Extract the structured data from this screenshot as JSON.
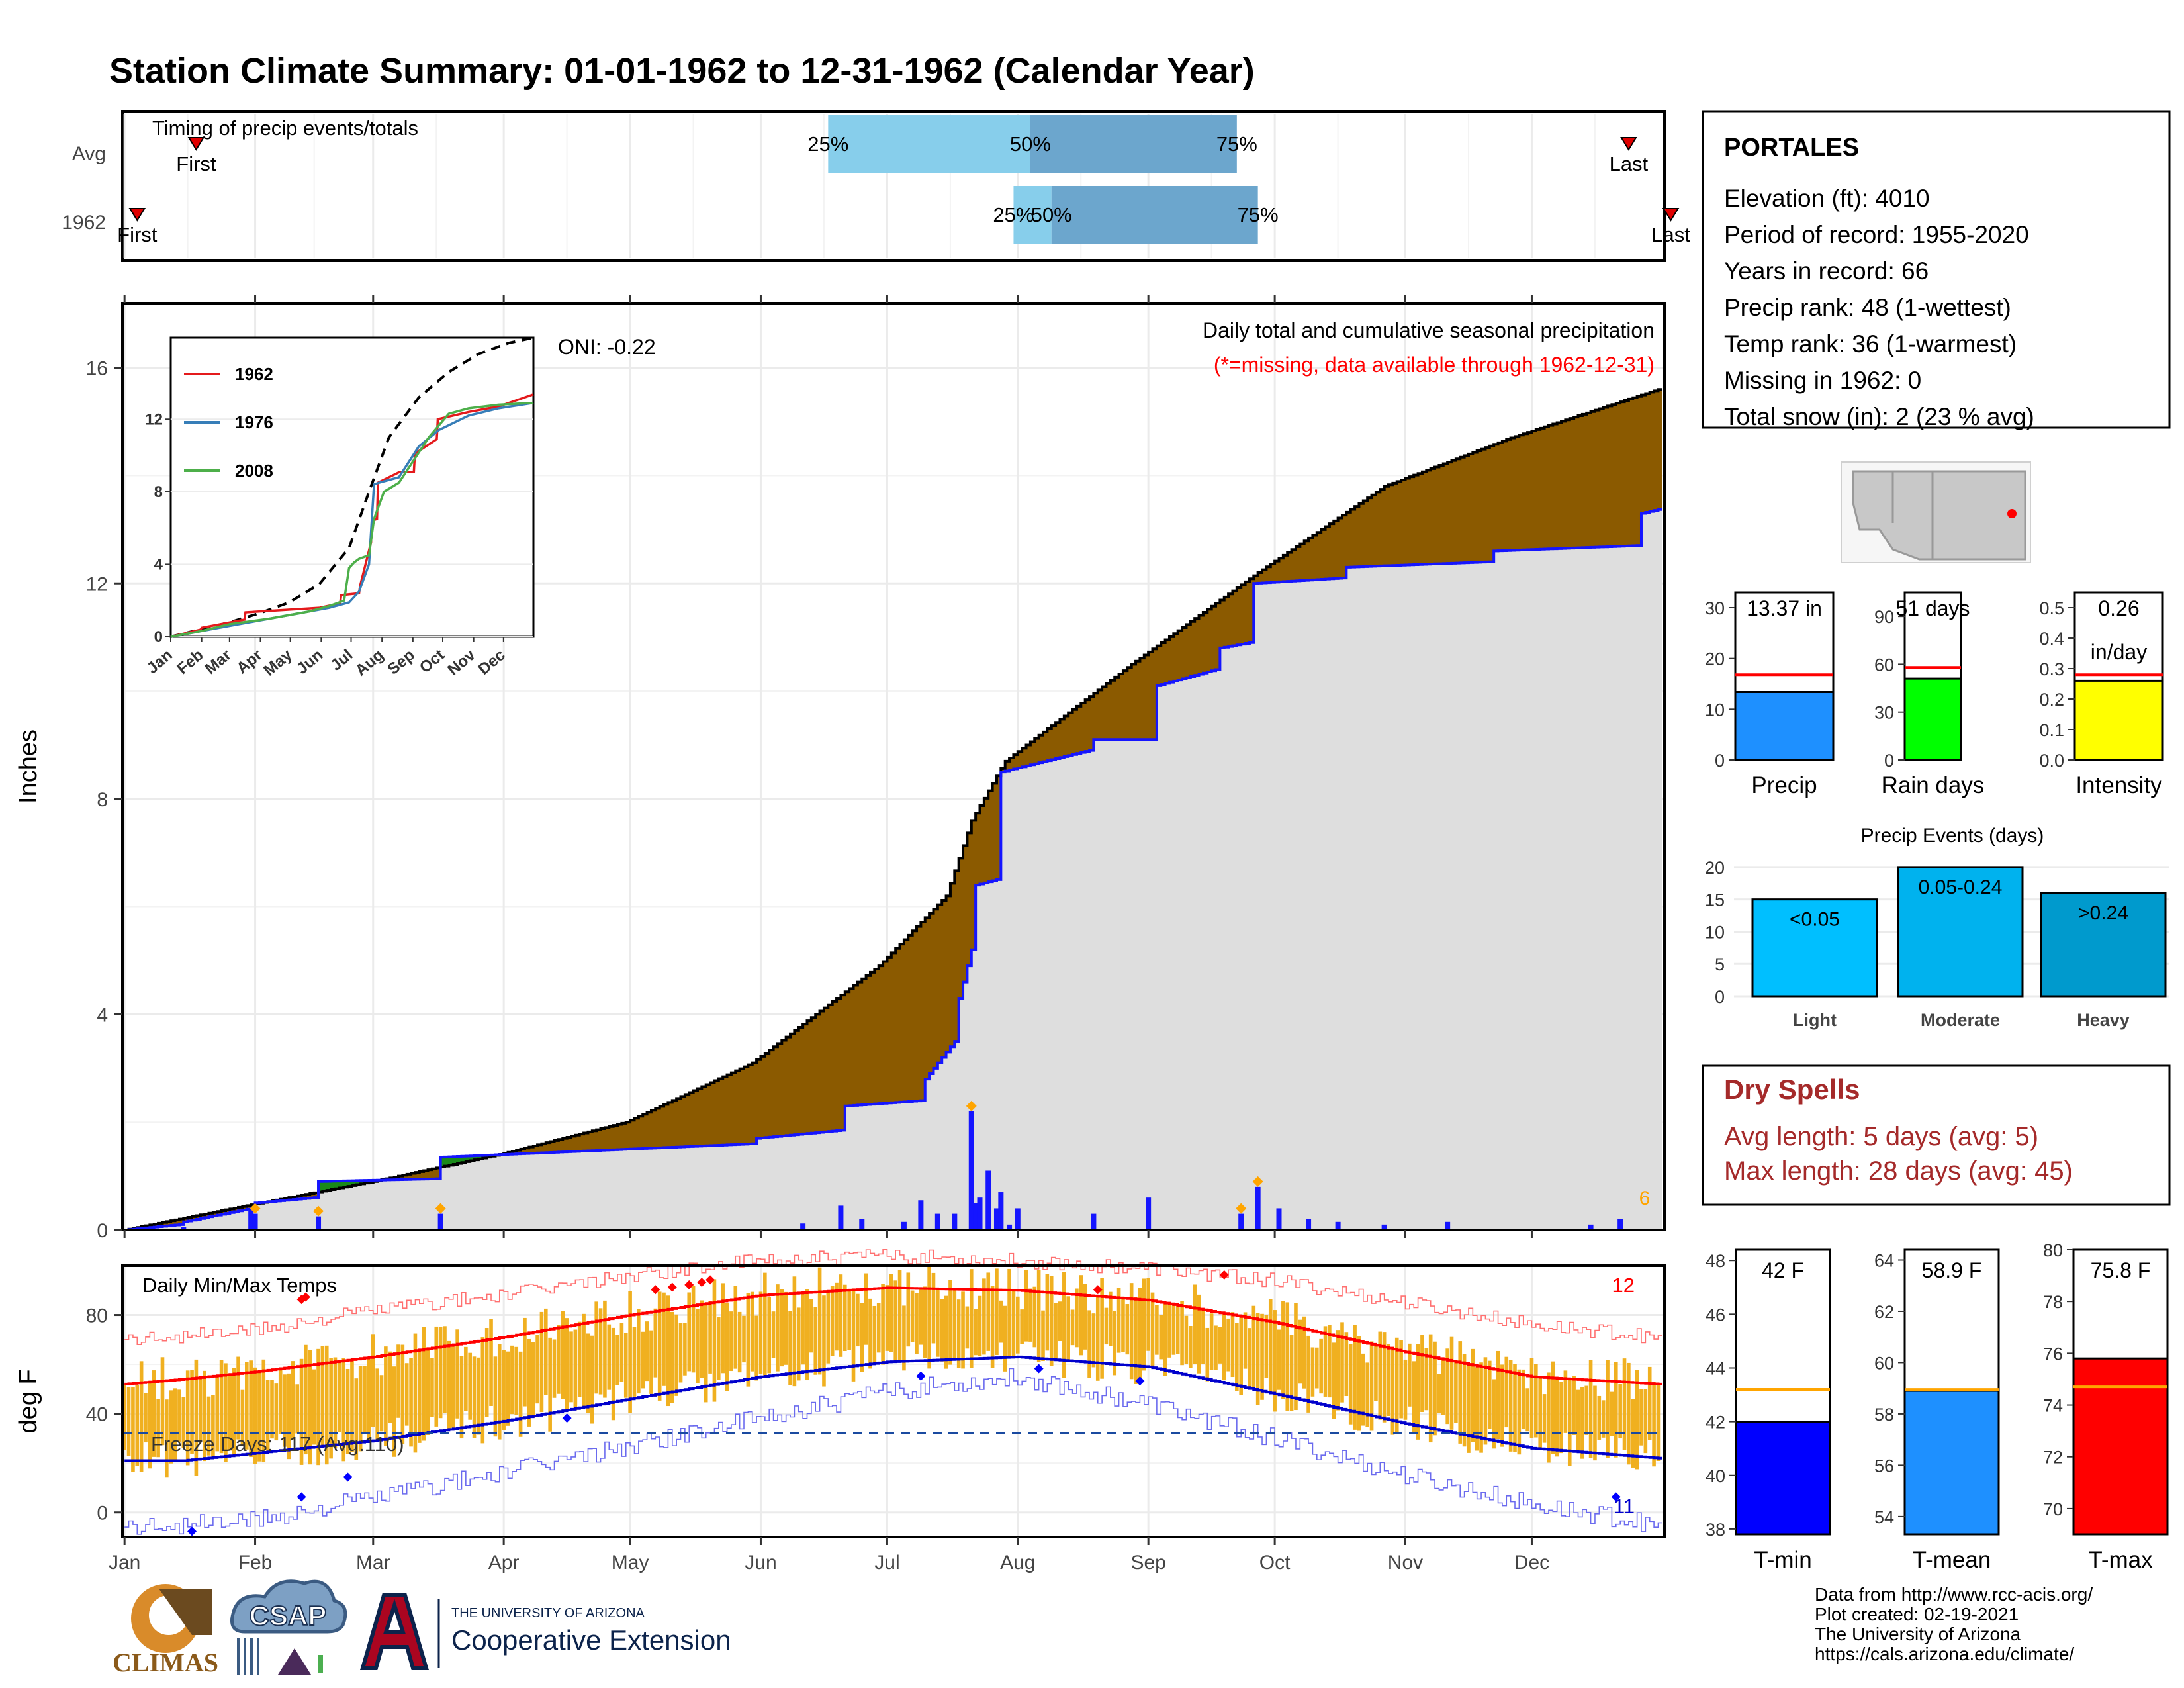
{
  "title": "Station Climate Summary: 01-01-1962 to 12-31-1962 (Calendar Year)",
  "colors": {
    "title": "#0b0b80",
    "cumulative_fill": "#8b5a00",
    "above_avg_fill": "#1a8a1a",
    "avg_fill": "#dedede",
    "daily_bar": "#1515ff",
    "tmax": "#ff0000",
    "tmin": "#0000cc",
    "range_bar": "#f0b020",
    "dry_spells": "#a52a2a"
  },
  "months": [
    "Jan",
    "Feb",
    "Mar",
    "Apr",
    "May",
    "Jun",
    "Jul",
    "Aug",
    "Sep",
    "Oct",
    "Nov",
    "Dec"
  ],
  "timing": {
    "title": "Timing of precip events/totals",
    "row_labels": [
      "Avg",
      "1962"
    ],
    "pct_labels": [
      "25%",
      "50%",
      "75%"
    ],
    "first_label": "First",
    "last_label": "Last",
    "avg": {
      "first": 18,
      "p25": 168,
      "p50": 216,
      "p75": 265,
      "last": 358
    },
    "y1962": {
      "first": 4,
      "p25": 212,
      "p50": 221,
      "p75": 270,
      "last": 368
    }
  },
  "precip_panel": {
    "title": "Daily total and cumulative seasonal precipitation",
    "note": "(*=missing, data available through 1962-12-31)",
    "oni": "ONI: -0.22",
    "ylabel": "Inches",
    "yticks": [
      "0",
      "4",
      "8",
      "12",
      "16"
    ],
    "ylim": [
      0,
      17.2
    ],
    "corner_count": "6"
  },
  "inset": {
    "series": [
      "1962",
      "1976",
      "2008"
    ],
    "series_colors": [
      "#e41a1c",
      "#377eb8",
      "#4daf4a"
    ],
    "yticks": [
      "0",
      "4",
      "8",
      "12"
    ],
    "ylim": [
      0,
      16.5
    ],
    "months": [
      "Jan",
      "Feb",
      "Mar",
      "Apr",
      "May",
      "Jun",
      "Jul",
      "Aug",
      "Sep",
      "Oct",
      "Nov",
      "Dec"
    ]
  },
  "temp_panel": {
    "title": "Daily Min/Max Temps",
    "ylabel": "deg F",
    "yticks": [
      "0",
      "40",
      "80"
    ],
    "ylim": [
      -10,
      100
    ],
    "freeze": "Freeze Days: 117 (Avg:110)",
    "max_count": "12",
    "min_count": "11"
  },
  "station": {
    "name": "PORTALES",
    "lines": [
      "Elevation (ft): 4010",
      "Period of record: 1955-2020",
      "Years in record: 66",
      "Precip rank: 48 (1-wettest)",
      "Temp rank: 36 (1-warmest)",
      "Missing in 1962: 0",
      "Total snow (in): 2 (23 % avg)"
    ]
  },
  "summary_bars": [
    {
      "name": "Precip",
      "value": 13.37,
      "label": "13.37 in",
      "avg": 16.8,
      "ymax": 33,
      "ticks": [
        "0",
        "10",
        "20",
        "30"
      ],
      "tickvals": [
        0,
        10,
        20,
        30
      ],
      "color": "#1e90ff"
    },
    {
      "name": "Rain days",
      "value": 51,
      "label": "51 days",
      "avg": 58,
      "ymax": 105,
      "ticks": [
        "0",
        "30",
        "60",
        "90"
      ],
      "tickvals": [
        0,
        30,
        60,
        90
      ],
      "color": "#00ff00"
    },
    {
      "name": "Intensity",
      "value": 0.26,
      "label": "0.26",
      "label2": "in/day",
      "avg": 0.28,
      "ymax": 0.55,
      "ticks": [
        "0.0",
        "0.1",
        "0.2",
        "0.3",
        "0.4",
        "0.5"
      ],
      "tickvals": [
        0,
        0.1,
        0.2,
        0.3,
        0.4,
        0.5
      ],
      "color": "#ffff00"
    }
  ],
  "events": {
    "title": "Precip Events (days)",
    "categories": [
      "Light",
      "Moderate",
      "Heavy"
    ],
    "labels": [
      "<0.05",
      "0.05-0.24",
      ">0.24"
    ],
    "values": [
      15,
      20,
      16
    ],
    "yticks": [
      "0",
      "5",
      "10",
      "15",
      "20"
    ],
    "colors": [
      "#00bfff",
      "#00b2ee",
      "#009acd"
    ]
  },
  "dry_spells": {
    "title": "Dry Spells",
    "avg": "Avg length: 5 days (avg: 5)",
    "max": "Max length: 28 days (avg: 45)"
  },
  "temp_bars": [
    {
      "name": "T-min",
      "value": 42.0,
      "label": "42 F",
      "avg": 43.2,
      "ylim": [
        37.8,
        48.4
      ],
      "ticks": [
        "38",
        "40",
        "42",
        "44",
        "46",
        "48"
      ],
      "tickvals": [
        38,
        40,
        42,
        44,
        46,
        48
      ],
      "color": "#0000ff"
    },
    {
      "name": "T-mean",
      "value": 58.9,
      "label": "58.9 F",
      "avg": 58.95,
      "ylim": [
        53.3,
        64.4
      ],
      "ticks": [
        "54",
        "56",
        "58",
        "60",
        "62",
        "64"
      ],
      "tickvals": [
        54,
        56,
        58,
        60,
        62,
        64
      ],
      "color": "#1e90ff"
    },
    {
      "name": "T-max",
      "value": 75.8,
      "label": "75.8 F",
      "avg": 74.7,
      "ylim": [
        69.0,
        80.0
      ],
      "ticks": [
        "70",
        "72",
        "74",
        "76",
        "78",
        "80"
      ],
      "tickvals": [
        70,
        72,
        74,
        76,
        78,
        80
      ],
      "color": "#ff0000"
    }
  ],
  "logos": {
    "climas": "CLIMAS",
    "csap": "CSAP",
    "ua_small": "THE UNIVERSITY OF ARIZONA",
    "ua_big": "Cooperative Extension"
  },
  "credits": [
    "Data from http://www.rcc-acis.org/",
    "Plot created: 02-19-2021",
    "The University of Arizona",
    "https://cals.arizona.edu/climate/"
  ],
  "chart_data": [
    {
      "type": "area",
      "title": "Daily total and cumulative seasonal precipitation",
      "ylabel": "Inches",
      "ylim": [
        0,
        17.2
      ],
      "x_unit": "day of year",
      "series": [
        {
          "name": "average",
          "x": [
            1,
            30,
            60,
            90,
            120,
            150,
            180,
            196,
            202,
            210,
            240,
            270,
            300,
            330,
            365
          ],
          "values": [
            0,
            0.45,
            0.9,
            1.4,
            2.0,
            3.1,
            4.9,
            6.2,
            7.6,
            8.7,
            10.5,
            12.2,
            13.8,
            14.7,
            15.6
          ]
        },
        {
          "name": "1962",
          "x": [
            1,
            14,
            15,
            31,
            32,
            46,
            47,
            75,
            76,
            150,
            151,
            171,
            172,
            190,
            191,
            198,
            199,
            202,
            203,
            208,
            209,
            230,
            231,
            245,
            246,
            260,
            261,
            268,
            269,
            290,
            291,
            325,
            326,
            360,
            361,
            365
          ],
          "values": [
            0,
            0.1,
            0.15,
            0.4,
            0.5,
            0.6,
            0.9,
            0.95,
            1.35,
            1.6,
            1.7,
            1.85,
            2.3,
            2.4,
            2.8,
            3.5,
            4.3,
            5.2,
            6.4,
            6.5,
            8.5,
            8.9,
            9.1,
            9.1,
            10.1,
            10.4,
            10.8,
            10.9,
            12.0,
            12.1,
            12.3,
            12.4,
            12.6,
            12.7,
            13.3,
            13.37
          ]
        }
      ],
      "daily_precip": {
        "x": [
          15,
          31,
          32,
          47,
          76,
          162,
          171,
          176,
          186,
          190,
          194,
          198,
          202,
          203,
          204,
          206,
          208,
          209,
          211,
          213,
          231,
          244,
          266,
          270,
          275,
          282,
          289,
          300,
          315,
          349,
          356
        ],
        "values": [
          0.05,
          0.4,
          0.3,
          0.25,
          0.3,
          0.12,
          0.45,
          0.2,
          0.15,
          0.55,
          0.3,
          0.3,
          2.2,
          0.5,
          0.6,
          1.1,
          0.4,
          0.7,
          0.1,
          0.4,
          0.3,
          0.6,
          0.3,
          0.8,
          0.4,
          0.2,
          0.15,
          0.1,
          0.15,
          0.1,
          0.2
        ]
      }
    },
    {
      "type": "line",
      "title": "",
      "x_unit": "day of year",
      "ylim": [
        0,
        16.5
      ],
      "series": [
        {
          "name": "average",
          "x": [
            1,
            30,
            60,
            90,
            120,
            150,
            180,
            200,
            220,
            250,
            280,
            310,
            340,
            365
          ],
          "values": [
            0,
            0.4,
            0.8,
            1.3,
            1.9,
            2.9,
            4.9,
            8.0,
            11.0,
            13.2,
            14.6,
            15.6,
            16.2,
            16.5
          ]
        },
        {
          "name": "1962",
          "x": [
            1,
            31,
            32,
            75,
            76,
            150,
            171,
            172,
            190,
            191,
            202,
            203,
            208,
            209,
            231,
            245,
            246,
            268,
            269,
            300,
            330,
            365
          ],
          "values": [
            0,
            0.4,
            0.5,
            0.95,
            1.35,
            1.6,
            1.85,
            2.3,
            2.4,
            2.8,
            5.2,
            6.4,
            6.5,
            8.5,
            9.1,
            9.1,
            10.1,
            10.9,
            12.0,
            12.4,
            12.7,
            13.37
          ]
        },
        {
          "name": "1976",
          "x": [
            1,
            40,
            80,
            120,
            160,
            180,
            190,
            200,
            205,
            210,
            230,
            250,
            270,
            300,
            330,
            365
          ],
          "values": [
            0,
            0.4,
            0.8,
            1.2,
            1.6,
            1.9,
            2.5,
            4.0,
            8.4,
            8.5,
            8.8,
            10.5,
            11.4,
            12.2,
            12.6,
            12.9
          ]
        },
        {
          "name": "2008",
          "x": [
            1,
            30,
            60,
            100,
            140,
            160,
            175,
            180,
            185,
            190,
            200,
            205,
            215,
            230,
            260,
            280,
            300,
            330,
            365
          ],
          "values": [
            0,
            0.3,
            0.7,
            1.0,
            1.4,
            1.7,
            2.0,
            3.8,
            4.1,
            4.3,
            4.5,
            6.5,
            8.0,
            8.5,
            11.0,
            12.3,
            12.6,
            12.8,
            12.9
          ]
        }
      ]
    },
    {
      "type": "line",
      "title": "Daily Min/Max Temps",
      "ylabel": "deg F",
      "ylim": [
        -10,
        100
      ],
      "x_unit": "day of year",
      "series": [
        {
          "name": "avg_tmax",
          "x": [
            1,
            15,
            32,
            60,
            91,
            121,
            152,
            182,
            213,
            244,
            274,
            305,
            335,
            365
          ],
          "values": [
            52,
            54,
            57,
            63,
            71,
            80,
            88,
            91,
            90,
            86,
            77,
            65,
            55,
            52
          ]
        },
        {
          "name": "avg_tmin",
          "x": [
            1,
            15,
            32,
            60,
            91,
            121,
            152,
            182,
            213,
            244,
            274,
            305,
            335,
            365
          ],
          "values": [
            21,
            21,
            24,
            29,
            37,
            46,
            55,
            61,
            63,
            59,
            48,
            36,
            26,
            22
          ]
        },
        {
          "name": "record_max",
          "x": [
            1,
            32,
            60,
            91,
            121,
            152,
            182,
            213,
            244,
            274,
            305,
            335,
            365
          ],
          "values": [
            70,
            74,
            82,
            88,
            96,
            102,
            104,
            102,
            99,
            94,
            85,
            76,
            71
          ]
        },
        {
          "name": "record_min",
          "x": [
            1,
            32,
            60,
            91,
            121,
            152,
            182,
            213,
            244,
            274,
            305,
            335,
            365
          ],
          "values": [
            -6,
            -3,
            6,
            16,
            27,
            38,
            49,
            55,
            44,
            30,
            15,
            3,
            -5
          ]
        }
      ],
      "freeze_line": 32
    },
    {
      "type": "bar",
      "title": "",
      "categories": [
        "Precip",
        "Rain days",
        "Intensity"
      ],
      "values": [
        13.37,
        51,
        0.26
      ],
      "averages": [
        16.8,
        58,
        0.28
      ]
    },
    {
      "type": "bar",
      "title": "Precip Events (days)",
      "categories": [
        "Light",
        "Moderate",
        "Heavy"
      ],
      "values": [
        15,
        20,
        16
      ],
      "ylim": [
        0,
        20.5
      ]
    },
    {
      "type": "bar",
      "title": "",
      "categories": [
        "T-min",
        "T-mean",
        "T-max"
      ],
      "values": [
        42.0,
        58.9,
        75.8
      ],
      "averages": [
        43.2,
        58.95,
        74.7
      ]
    }
  ]
}
